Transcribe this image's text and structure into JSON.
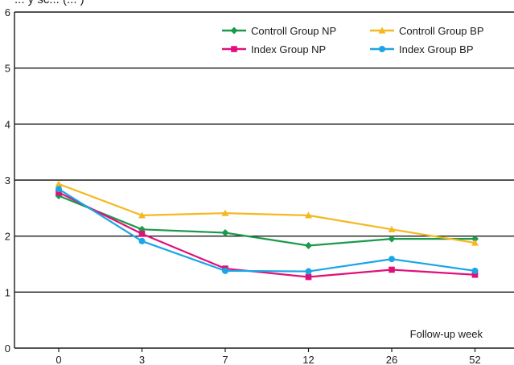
{
  "chart_data": {
    "type": "line",
    "top_label": "... y sc... (... )",
    "annotation": "Follow-up week",
    "x": [
      "0",
      "3",
      "7",
      "12",
      "26",
      "52"
    ],
    "ylim": [
      0,
      6
    ],
    "yticks": [
      "0",
      "1",
      "2",
      "3",
      "4",
      "5",
      "6"
    ],
    "grid": "horizontal",
    "legend_position": "top-right",
    "series": [
      {
        "name": "Controll Group NP",
        "color": "#1a9a4a",
        "marker": "diamond",
        "values": [
          2.72,
          2.12,
          2.06,
          1.83,
          1.95,
          1.95
        ]
      },
      {
        "name": "Controll Group BP",
        "color": "#f5b820",
        "marker": "triangle",
        "values": [
          2.93,
          2.37,
          2.41,
          2.37,
          2.12,
          1.88
        ]
      },
      {
        "name": "Index Group NP",
        "color": "#e0107a",
        "marker": "square",
        "values": [
          2.78,
          2.04,
          1.42,
          1.27,
          1.4,
          1.31
        ]
      },
      {
        "name": "Index Group BP",
        "color": "#1aa6e6",
        "marker": "circle",
        "values": [
          2.84,
          1.91,
          1.38,
          1.37,
          1.59,
          1.38
        ]
      }
    ]
  }
}
